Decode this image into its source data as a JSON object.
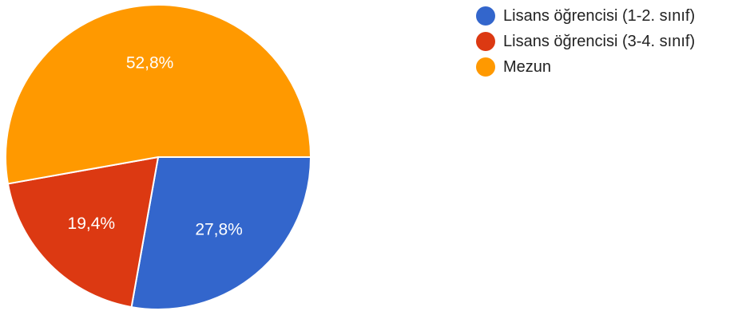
{
  "chart_data": {
    "type": "pie",
    "title": "",
    "slices": [
      {
        "label": "Lisans öğrencisi (1-2. sınıf)",
        "value": 27.8,
        "display": "27,8%",
        "color": "#3366cc"
      },
      {
        "label": "Lisans öğrencisi (3-4. sınıf)",
        "value": 19.4,
        "display": "19,4%",
        "color": "#dc3912"
      },
      {
        "label": "Mezun",
        "value": 52.8,
        "display": "52,8%",
        "color": "#ff9900"
      }
    ],
    "legend_position": "right",
    "start_angle": "3 o'clock",
    "direction": "clockwise"
  }
}
